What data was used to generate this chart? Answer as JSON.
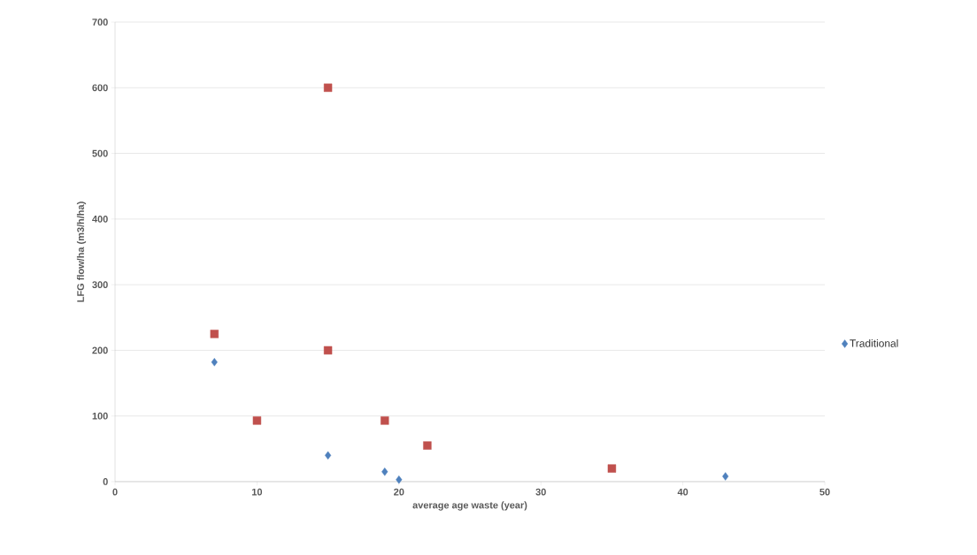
{
  "chart_data": {
    "type": "scatter",
    "xlabel": "average age waste (year)",
    "ylabel": "LFG flow/ha (m3/h/ha)",
    "series": [
      {
        "name": "Traditional",
        "color": "#4f81bd",
        "marker": "diamond",
        "x": [
          7,
          15,
          19,
          20,
          43
        ],
        "values": [
          182,
          40,
          15,
          3,
          8
        ]
      },
      {
        "color": "#c0504d",
        "marker": "square",
        "x": [
          7,
          10,
          15,
          15,
          19,
          22,
          35
        ],
        "values": [
          225,
          93,
          600,
          200,
          93,
          55,
          20
        ]
      }
    ],
    "xlim": [
      0,
      50
    ],
    "xticks": [
      0,
      10,
      20,
      30,
      40,
      50
    ],
    "ylim": [
      0,
      700
    ],
    "yticks": [
      0,
      100,
      200,
      300,
      400,
      500,
      600,
      700
    ],
    "grid": "y",
    "legend": "right"
  }
}
